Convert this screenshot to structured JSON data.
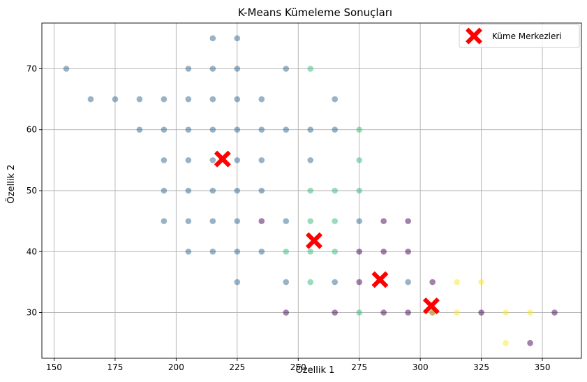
{
  "chart_data": {
    "type": "scatter",
    "title": "K-Means Kümeleme Sonuçları",
    "xlabel": "Özellik 1",
    "ylabel": "Özellik 2",
    "xlim": [
      145,
      366
    ],
    "ylim": [
      22.5,
      77.5
    ],
    "xticks": [
      150,
      175,
      200,
      225,
      250,
      275,
      300,
      325,
      350
    ],
    "yticks": [
      30,
      40,
      50,
      60,
      70
    ],
    "grid": true,
    "legend": {
      "placement": "top-right",
      "entries": [
        "Küme Merkezleri"
      ]
    },
    "colors": {
      "c0": "#440154",
      "c1": "#31688e",
      "c2": "#35b779",
      "c3": "#fde725",
      "centroid": "#ff0000"
    },
    "series": [
      {
        "cluster": 0,
        "color": "#440154",
        "points": [
          [
            235,
            45
          ],
          [
            245,
            30
          ],
          [
            265,
            30
          ],
          [
            275,
            40
          ],
          [
            275,
            35
          ],
          [
            285,
            45
          ],
          [
            285,
            40
          ],
          [
            285,
            30
          ],
          [
            295,
            45
          ],
          [
            295,
            40
          ],
          [
            295,
            30
          ],
          [
            305,
            35
          ],
          [
            305,
            30
          ],
          [
            325,
            30
          ],
          [
            345,
            25
          ],
          [
            355,
            30
          ]
        ]
      },
      {
        "cluster": 1,
        "color": "#31688e",
        "points": [
          [
            155,
            70
          ],
          [
            165,
            65
          ],
          [
            175,
            65
          ],
          [
            185,
            65
          ],
          [
            185,
            60
          ],
          [
            195,
            65
          ],
          [
            195,
            60
          ],
          [
            195,
            55
          ],
          [
            195,
            50
          ],
          [
            195,
            45
          ],
          [
            205,
            70
          ],
          [
            205,
            65
          ],
          [
            205,
            60
          ],
          [
            205,
            55
          ],
          [
            205,
            50
          ],
          [
            205,
            45
          ],
          [
            205,
            40
          ],
          [
            215,
            75
          ],
          [
            215,
            70
          ],
          [
            215,
            65
          ],
          [
            215,
            60
          ],
          [
            215,
            55
          ],
          [
            215,
            50
          ],
          [
            215,
            45
          ],
          [
            215,
            40
          ],
          [
            225,
            75
          ],
          [
            225,
            70
          ],
          [
            225,
            65
          ],
          [
            225,
            60
          ],
          [
            225,
            55
          ],
          [
            225,
            50
          ],
          [
            225,
            45
          ],
          [
            225,
            40
          ],
          [
            225,
            35
          ],
          [
            235,
            65
          ],
          [
            235,
            60
          ],
          [
            235,
            55
          ],
          [
            235,
            50
          ],
          [
            235,
            40
          ],
          [
            245,
            70
          ],
          [
            245,
            60
          ],
          [
            245,
            45
          ],
          [
            245,
            35
          ],
          [
            255,
            60
          ],
          [
            255,
            55
          ],
          [
            265,
            65
          ],
          [
            265,
            60
          ],
          [
            265,
            35
          ],
          [
            275,
            45
          ],
          [
            295,
            35
          ]
        ]
      },
      {
        "cluster": 2,
        "color": "#35b779",
        "points": [
          [
            245,
            40
          ],
          [
            255,
            70
          ],
          [
            255,
            50
          ],
          [
            255,
            45
          ],
          [
            255,
            40
          ],
          [
            255,
            35
          ],
          [
            265,
            50
          ],
          [
            265,
            45
          ],
          [
            265,
            40
          ],
          [
            275,
            60
          ],
          [
            275,
            55
          ],
          [
            275,
            50
          ],
          [
            275,
            30
          ]
        ]
      },
      {
        "cluster": 3,
        "color": "#fde725",
        "points": [
          [
            305,
            30
          ],
          [
            315,
            35
          ],
          [
            315,
            30
          ],
          [
            325,
            35
          ],
          [
            335,
            30
          ],
          [
            335,
            25
          ],
          [
            345,
            30
          ]
        ]
      }
    ],
    "centroids": {
      "name": "Küme Merkezleri",
      "color": "#ff0000",
      "points": [
        [
          219,
          55.2
        ],
        [
          256.5,
          41.8
        ],
        [
          283.5,
          35.4
        ],
        [
          304.5,
          31.1
        ]
      ]
    }
  }
}
